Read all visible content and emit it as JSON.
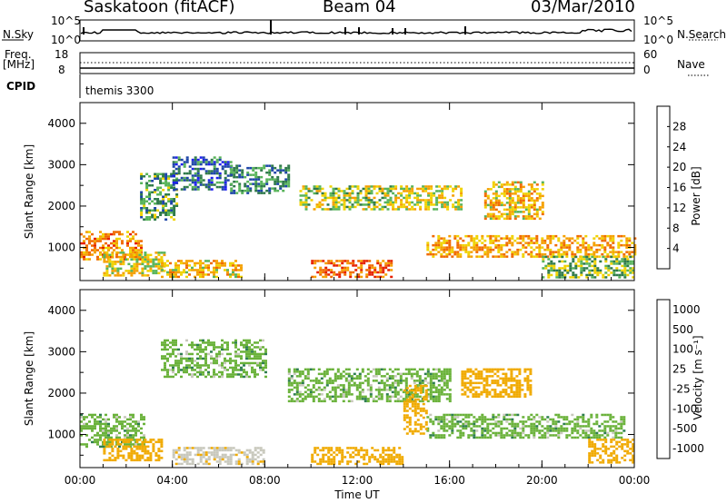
{
  "header": {
    "station": "Saskatoon (fitACF)",
    "beam": "Beam 04",
    "date": "03/Mar/2010"
  },
  "panels": {
    "nsky_label": "N.Sky",
    "nsky_ticks": [
      "10^5",
      "10^0"
    ],
    "nsearch_label": "N.Search",
    "nsearch_ticks": [
      "10^5",
      "10^0"
    ],
    "freq_label_line1": "Freq.",
    "freq_label_line2": "[MHz]",
    "freq_ticks": [
      "18",
      "8"
    ],
    "nave_label": "Nave",
    "nave_ticks": [
      "60",
      "0"
    ],
    "cpid_label": "CPID",
    "cpid_value": "themis 3300"
  },
  "colors": {
    "power_scale": [
      "#1e1ef0",
      "#1e46a8",
      "#2f7a4a",
      "#58b45a",
      "#f0d200",
      "#f5a000",
      "#f06a00",
      "#e62000"
    ],
    "velocity_scale": [
      "#1c2fb4",
      "#28609c",
      "#2e7e50",
      "#6ab23a",
      "#c8c8bc",
      "#f0aa00",
      "#f06e00",
      "#e82000"
    ]
  },
  "chart_data": [
    {
      "type": "heatmap",
      "panel": "power",
      "ylabel": "Slant Range [km]",
      "ylim": [
        200,
        4500
      ],
      "yticks": [
        1000,
        2000,
        3000,
        4000
      ],
      "xlim": [
        0,
        24
      ],
      "xticks": [
        "00:00",
        "04:00",
        "08:00",
        "12:00",
        "16:00",
        "20:00",
        "00:00"
      ],
      "colorbar": {
        "label": "Power [dB]",
        "ticks": [
          4,
          8,
          12,
          16,
          20,
          24,
          28
        ],
        "range": [
          0,
          32
        ]
      },
      "echo_regions": [
        {
          "t": [
            0.0,
            2.6
          ],
          "range_km": [
            700,
            1400
          ],
          "power_db": 24
        },
        {
          "t": [
            1.0,
            3.6
          ],
          "range_km": [
            350,
            900
          ],
          "power_db": 18
        },
        {
          "t": [
            2.6,
            4.2
          ],
          "range_km": [
            1700,
            2800
          ],
          "power_db": 12
        },
        {
          "t": [
            4.0,
            6.5
          ],
          "range_km": [
            2400,
            3200
          ],
          "power_db": 8
        },
        {
          "t": [
            3.5,
            7.0
          ],
          "range_km": [
            300,
            700
          ],
          "power_db": 20
        },
        {
          "t": [
            6.5,
            9.0
          ],
          "range_km": [
            2300,
            3000
          ],
          "power_db": 10
        },
        {
          "t": [
            9.5,
            13.5
          ],
          "range_km": [
            1900,
            2500
          ],
          "power_db": 16
        },
        {
          "t": [
            10.0,
            13.5
          ],
          "range_km": [
            300,
            700
          ],
          "power_db": 26
        },
        {
          "t": [
            13.5,
            16.5
          ],
          "range_km": [
            1900,
            2500
          ],
          "power_db": 18
        },
        {
          "t": [
            15.0,
            24.0
          ],
          "range_km": [
            800,
            1300
          ],
          "power_db": 22
        },
        {
          "t": [
            17.5,
            20.0
          ],
          "range_km": [
            1700,
            2600
          ],
          "power_db": 20
        },
        {
          "t": [
            20.0,
            24.0
          ],
          "range_km": [
            300,
            800
          ],
          "power_db": 14
        }
      ]
    },
    {
      "type": "heatmap",
      "panel": "velocity",
      "ylabel": "Slant Range [km]",
      "xlabel": "Time UT",
      "ylim": [
        200,
        4500
      ],
      "yticks": [
        1000,
        2000,
        3000,
        4000
      ],
      "xlim": [
        0,
        24
      ],
      "xticks": [
        "00:00",
        "04:00",
        "08:00",
        "12:00",
        "16:00",
        "20:00",
        "00:00"
      ],
      "colorbar": {
        "label": "Velocity [m s⁻¹]",
        "ticks": [
          "1000",
          "500",
          "100",
          "25",
          "-25",
          "-100",
          "-500",
          "-1000"
        ]
      },
      "echo_regions": [
        {
          "t": [
            0.0,
            2.8
          ],
          "range_km": [
            700,
            1500
          ],
          "velocity": 0
        },
        {
          "t": [
            1.0,
            3.5
          ],
          "range_km": [
            400,
            900
          ],
          "velocity": -150
        },
        {
          "t": [
            3.5,
            8.0
          ],
          "range_km": [
            2400,
            3300
          ],
          "velocity": 0
        },
        {
          "t": [
            4.0,
            8.0
          ],
          "range_km": [
            300,
            700
          ],
          "velocity": -80
        },
        {
          "t": [
            9.0,
            16.0
          ],
          "range_km": [
            1800,
            2600
          ],
          "velocity": 0
        },
        {
          "t": [
            10.0,
            14.0
          ],
          "range_km": [
            300,
            700
          ],
          "velocity": -200
        },
        {
          "t": [
            15.0,
            23.5
          ],
          "range_km": [
            900,
            1500
          ],
          "velocity": 0
        },
        {
          "t": [
            16.5,
            19.5
          ],
          "range_km": [
            1900,
            2600
          ],
          "velocity": -400
        },
        {
          "t": [
            14.0,
            15.0
          ],
          "range_km": [
            1000,
            2200
          ],
          "velocity": -300
        },
        {
          "t": [
            22.0,
            24.0
          ],
          "range_km": [
            300,
            900
          ],
          "velocity": -150
        }
      ]
    }
  ]
}
